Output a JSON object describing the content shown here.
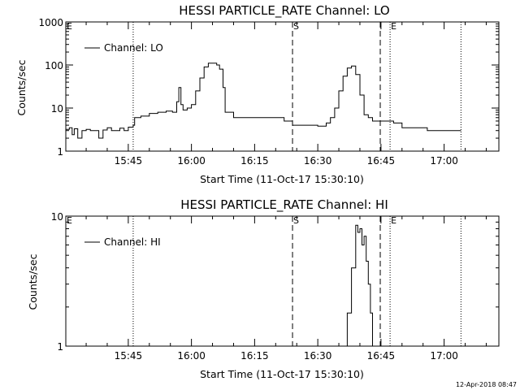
{
  "footer_timestamp": "12-Apr-2018 08:47",
  "chart_data": [
    {
      "type": "line",
      "title": "HESSI PARTICLE_RATE Channel: LO",
      "xlabel": "Start Time (11-Oct-17 15:30:10)",
      "ylabel": "Counts/sec",
      "yscale": "log",
      "ylim": [
        1,
        1000
      ],
      "yticks": [
        "1",
        "10",
        "100",
        "1000"
      ],
      "xlim": [
        "15:30:10",
        "17:13:00"
      ],
      "xticks": [
        "15:45",
        "16:00",
        "16:15",
        "16:30",
        "16:45",
        "17:00"
      ],
      "grid": false,
      "legend": {
        "position": "top-left",
        "entries": [
          "Channel: LO"
        ]
      },
      "markers": [
        {
          "label": "E",
          "time": "15:30:10",
          "style": "none"
        },
        {
          "label": "",
          "time": "15:46:10",
          "style": "dotted"
        },
        {
          "label": "S",
          "time": "16:24:00",
          "style": "dashed"
        },
        {
          "label": "",
          "time": "16:44:50",
          "style": "dashed"
        },
        {
          "label": "E",
          "time": "16:47:10",
          "style": "dotted"
        },
        {
          "label": "",
          "time": "17:04:00",
          "style": "dotted"
        }
      ],
      "series": [
        {
          "name": "Channel: LO",
          "x": [
            "15:30:10",
            "15:31:00",
            "15:31:40",
            "15:32:10",
            "15:33:00",
            "15:34:00",
            "15:35:00",
            "15:36:00",
            "15:37:00",
            "15:38:00",
            "15:39:00",
            "15:40:00",
            "15:41:00",
            "15:42:00",
            "15:43:00",
            "15:44:00",
            "15:45:00",
            "15:46:10",
            "15:46:30",
            "15:48:00",
            "15:50:00",
            "15:52:00",
            "15:54:00",
            "15:55:30",
            "15:56:30",
            "15:57:00",
            "15:57:30",
            "15:58:00",
            "15:59:00",
            "16:00:00",
            "16:01:00",
            "16:02:00",
            "16:03:00",
            "16:04:00",
            "16:05:00",
            "16:06:00",
            "16:06:40",
            "16:07:30",
            "16:08:00",
            "16:10:00",
            "16:12:00",
            "16:15:00",
            "16:18:00",
            "16:20:00",
            "16:22:00",
            "16:24:00",
            "16:26:00",
            "16:28:00",
            "16:30:00",
            "16:32:00",
            "16:33:00",
            "16:34:00",
            "16:35:00",
            "16:36:00",
            "16:37:00",
            "16:38:00",
            "16:39:00",
            "16:40:00",
            "16:41:00",
            "16:42:00",
            "16:43:00",
            "16:44:00",
            "16:45:00",
            "16:46:00",
            "16:48:00",
            "16:50:00",
            "16:52:00",
            "16:54:00",
            "16:56:00",
            "16:58:00",
            "17:00:00",
            "17:02:00",
            "17:04:00"
          ],
          "values": [
            3.2,
            3.5,
            2.4,
            3.3,
            2.0,
            3.0,
            3.2,
            3.0,
            3.0,
            2.0,
            3.1,
            3.5,
            3.0,
            3.0,
            3.4,
            3.0,
            3.6,
            4.0,
            6.0,
            6.5,
            7.5,
            8.0,
            8.5,
            8.0,
            14,
            30,
            12,
            9,
            10,
            12,
            25,
            50,
            90,
            110,
            110,
            100,
            80,
            30,
            8,
            6,
            6,
            6,
            6,
            6,
            5,
            4,
            4,
            4,
            3.8,
            4.5,
            6,
            10,
            25,
            55,
            85,
            95,
            60,
            20,
            7,
            6,
            5,
            5,
            5,
            5,
            4.5,
            3.5,
            3.5,
            3.5,
            3,
            3,
            3,
            3,
            3
          ]
        }
      ]
    },
    {
      "type": "line",
      "title": "HESSI PARTICLE_RATE Channel: HI",
      "xlabel": "Start Time (11-Oct-17 15:30:10)",
      "ylabel": "Counts/sec",
      "yscale": "log",
      "ylim": [
        1,
        10
      ],
      "yticks": [
        "1",
        "10"
      ],
      "xlim": [
        "15:30:10",
        "17:13:00"
      ],
      "xticks": [
        "15:45",
        "16:00",
        "16:15",
        "16:30",
        "16:45",
        "17:00"
      ],
      "grid": false,
      "legend": {
        "position": "top-left",
        "entries": [
          "Channel: HI"
        ]
      },
      "markers": [
        {
          "label": "E",
          "time": "15:30:10",
          "style": "none"
        },
        {
          "label": "",
          "time": "15:46:10",
          "style": "dotted"
        },
        {
          "label": "S",
          "time": "16:24:00",
          "style": "dashed"
        },
        {
          "label": "",
          "time": "16:44:50",
          "style": "dashed"
        },
        {
          "label": "E",
          "time": "16:47:10",
          "style": "dotted"
        },
        {
          "label": "",
          "time": "17:04:00",
          "style": "dotted"
        }
      ],
      "series": [
        {
          "name": "Channel: HI",
          "x": [
            "16:36:00",
            "16:37:00",
            "16:38:00",
            "16:39:00",
            "16:39:30",
            "16:40:00",
            "16:40:30",
            "16:41:00",
            "16:41:30",
            "16:42:00",
            "16:42:30",
            "16:43:00"
          ],
          "values": [
            1,
            1.8,
            4,
            8.5,
            7.5,
            8,
            6,
            7,
            4.5,
            3,
            1.8,
            1
          ]
        }
      ]
    }
  ]
}
